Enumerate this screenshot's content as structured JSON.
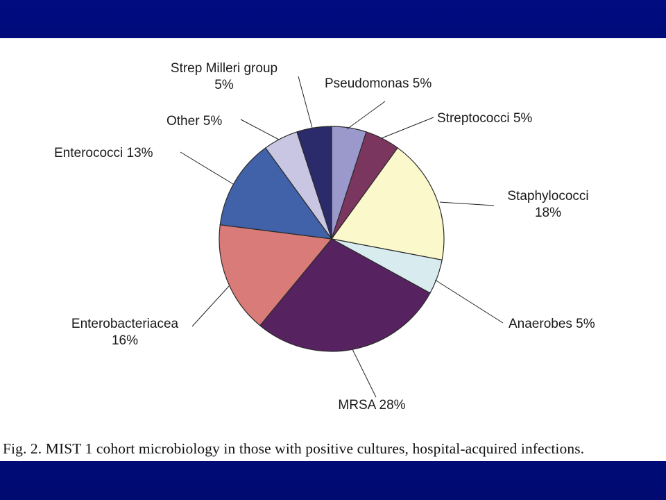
{
  "caption": "Fig. 2. MIST 1 cohort microbiology in those with positive cultures, hospital-acquired infections.",
  "colors": {
    "band": "#000b7a"
  },
  "chart_data": {
    "type": "pie",
    "title": "",
    "slices": [
      {
        "name": "Pseudomonas",
        "value": 5,
        "label_lines": [
          "Pseudomonas 5%"
        ],
        "color": "#9b98cc"
      },
      {
        "name": "Streptococci",
        "value": 5,
        "label_lines": [
          "Streptococci 5%"
        ],
        "color": "#7b3660"
      },
      {
        "name": "Staphylococci",
        "value": 18,
        "label_lines": [
          "Staphylococci",
          "18%"
        ],
        "color": "#fbf8cc"
      },
      {
        "name": "Anaerobes",
        "value": 5,
        "label_lines": [
          "Anaerobes 5%"
        ],
        "color": "#d8ecef"
      },
      {
        "name": "MRSA",
        "value": 28,
        "label_lines": [
          "MRSA 28%"
        ],
        "color": "#572260"
      },
      {
        "name": "Enterobacteriacea",
        "value": 16,
        "label_lines": [
          "Enterobacteriacea",
          "16%"
        ],
        "color": "#d97b78"
      },
      {
        "name": "Enterococci",
        "value": 13,
        "label_lines": [
          "Enterococci 13%"
        ],
        "color": "#4162a8"
      },
      {
        "name": "Other",
        "value": 5,
        "label_lines": [
          "Other 5%"
        ],
        "color": "#c9c6e3"
      },
      {
        "name": "Strep Milleri group",
        "value": 5,
        "label_lines": [
          "Strep Milleri group",
          "5%"
        ],
        "color": "#2b2b6b"
      }
    ]
  }
}
